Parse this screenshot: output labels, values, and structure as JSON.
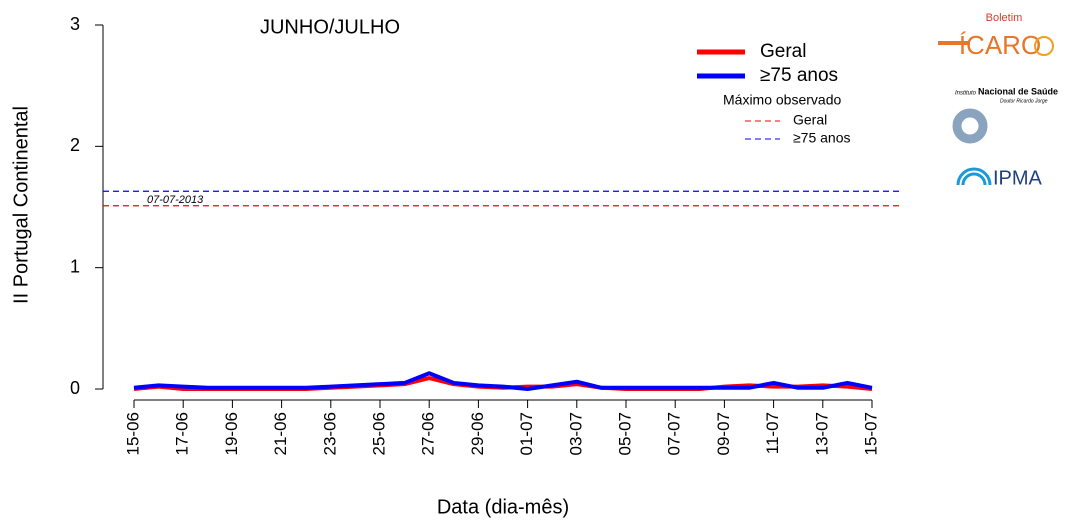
{
  "chart_data": {
    "type": "line",
    "title": "JUNHO/JULHO",
    "x_label": "Data (dia-mês)",
    "y_label": "II Portugal Continental",
    "categories": [
      "15-06",
      null,
      "17-06",
      null,
      "19-06",
      null,
      "21-06",
      null,
      "23-06",
      null,
      "25-06",
      null,
      "27-06",
      null,
      "29-06",
      null,
      "01-07",
      null,
      "03-07",
      null,
      "05-07",
      null,
      "07-07",
      null,
      "09-07",
      null,
      "11-07",
      null,
      "13-07",
      null,
      "15-07"
    ],
    "series": [
      {
        "name": "Geral",
        "color": "#ff0000",
        "values": [
          0.0,
          0.02,
          0.0,
          0.0,
          0.0,
          0.0,
          0.0,
          0.0,
          0.01,
          0.02,
          0.03,
          0.04,
          0.09,
          0.04,
          0.02,
          0.01,
          0.02,
          0.02,
          0.04,
          0.01,
          0.0,
          0.0,
          0.0,
          0.0,
          0.02,
          0.03,
          0.02,
          0.02,
          0.03,
          0.02,
          0.0
        ]
      },
      {
        "name": "≥75 anos",
        "color": "#0000ff",
        "values": [
          0.01,
          0.03,
          0.02,
          0.01,
          0.01,
          0.01,
          0.01,
          0.01,
          0.02,
          0.03,
          0.04,
          0.05,
          0.13,
          0.05,
          0.03,
          0.02,
          0.0,
          0.03,
          0.06,
          0.01,
          0.01,
          0.01,
          0.01,
          0.01,
          0.01,
          0.01,
          0.05,
          0.01,
          0.01,
          0.05,
          0.01
        ]
      }
    ],
    "reference_legend_title": "Máximo observado",
    "reference_lines": [
      {
        "name": "Geral",
        "color": "#ff0000",
        "value": 1.51
      },
      {
        "name": "≥75 anos",
        "color": "#0000ff",
        "value": 1.63
      }
    ],
    "annotation": "07-07-2013",
    "ylim": [
      0,
      3
    ],
    "yticks": [
      0,
      1,
      2,
      3
    ]
  },
  "logos": {
    "icaro_top": "Boletim",
    "icaro": "ÍCARO",
    "insa_small": "Instituto",
    "insa": "Nacional de Saúde",
    "insa_sub": "Doutor Ricardo Jorge",
    "ipma": "IPMA"
  }
}
